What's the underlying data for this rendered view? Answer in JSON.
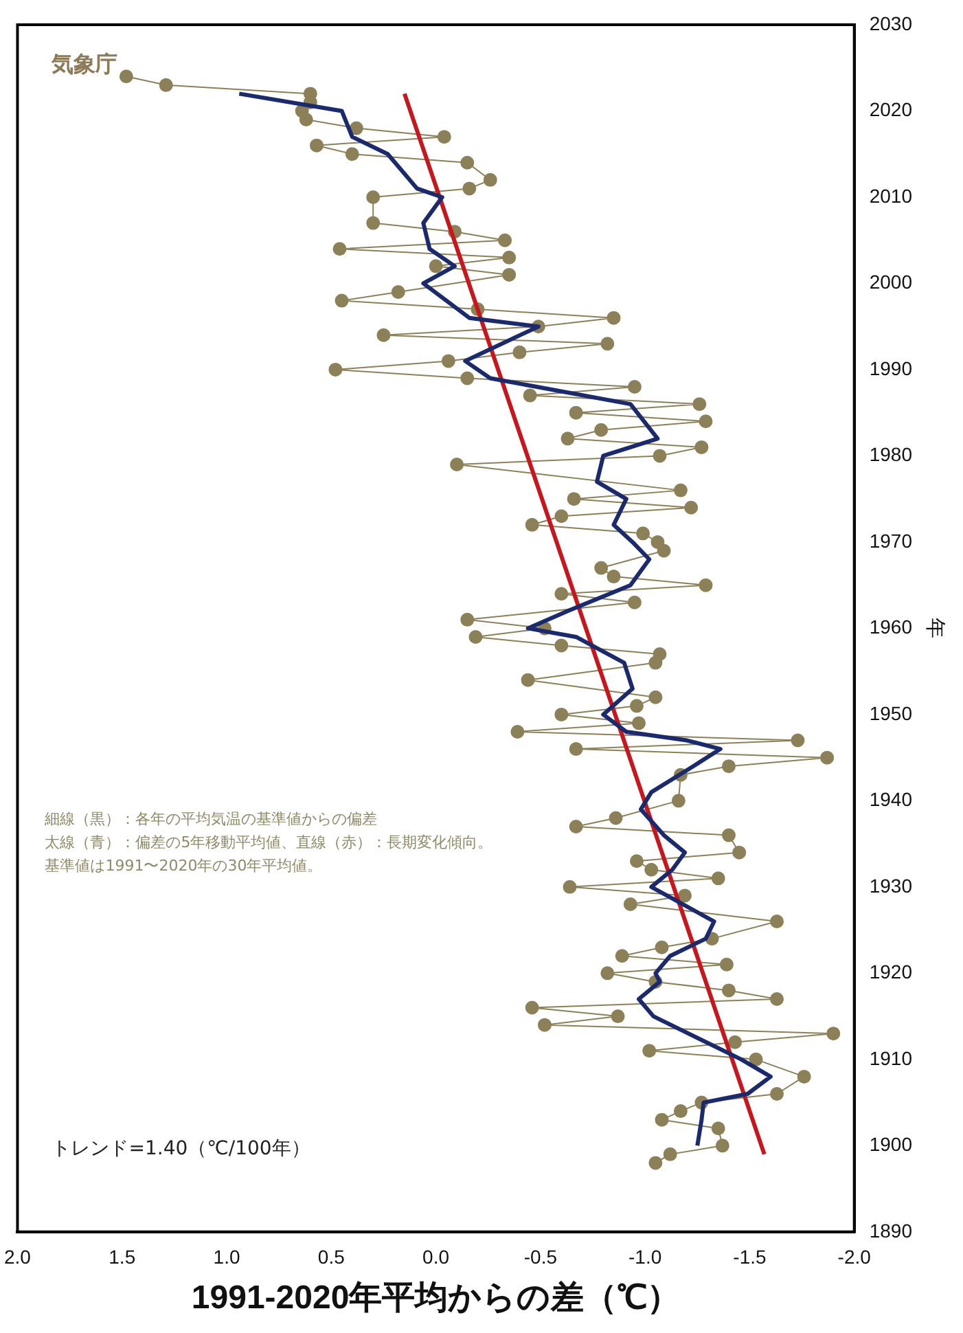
{
  "chart_data": {
    "type": "line",
    "xlabel": "1991-2020年平均からの差（℃）",
    "ylabel": "年",
    "annotations": [
      "トレンド=1.40（℃/100年）",
      "細線（黒）：各年の平均気温の基準値からの偏差",
      "太線（青）：偏差の5年移動平均値、直線（赤）：長期変化傾向。",
      "基準値は1991〜2020年の30年平均値。",
      "気象庁"
    ],
    "ylim": [
      1890,
      2030
    ],
    "yticks": [
      1890,
      1900,
      1910,
      1920,
      1930,
      1940,
      1950,
      1960,
      1970,
      1980,
      1990,
      2000,
      2010,
      2020,
      2030
    ],
    "xlim": [
      2,
      -2
    ],
    "xticks": [
      {
        "value": 2,
        "label": "2.0"
      },
      {
        "value": 1.5,
        "label": "1.5"
      },
      {
        "value": 1,
        "label": "1.0"
      },
      {
        "value": 0.5,
        "label": "0.5"
      },
      {
        "value": 0,
        "label": "0.0"
      },
      {
        "value": -0.5,
        "label": "-0.5"
      },
      {
        "value": -1,
        "label": "-1.0"
      },
      {
        "value": -1.5,
        "label": "-1.5"
      },
      {
        "value": -2,
        "label": "-2.0"
      }
    ],
    "grid": false,
    "legend": false,
    "series": [
      {
        "color": "#8c8058",
        "marker": "circle",
        "values": [
          1898,
          1899,
          1900,
          1902,
          1903,
          1904,
          1905,
          1906,
          1908,
          1910,
          1911,
          1912,
          1913,
          1914,
          1915,
          1916,
          1917,
          1918,
          1919,
          1920,
          1921,
          1922,
          1923,
          1924,
          1926,
          1928,
          1929,
          1930,
          1931,
          1932,
          1933,
          1934,
          1936,
          1937,
          1938,
          1940,
          1943,
          1944,
          1945,
          1946,
          1947,
          1948,
          1949,
          1950,
          1951,
          1952,
          1954,
          1956,
          1957,
          1958,
          1959,
          1960,
          1961,
          1963,
          1964,
          1965,
          1966,
          1967,
          1969,
          1970,
          1971,
          1972,
          1973,
          1974,
          1975,
          1976,
          1979,
          1980,
          1981,
          1982,
          1983,
          1984,
          1985,
          1986,
          1987,
          1988,
          1989,
          1990,
          1991,
          1992,
          1993,
          1994,
          1995,
          1996,
          1997,
          1998,
          1999,
          2001,
          2002,
          2003,
          2004,
          2005,
          2006,
          2007,
          2010,
          2011,
          2012,
          2014,
          2015,
          2016,
          2017,
          2018,
          2019,
          2020,
          2021,
          2022,
          2023,
          2024
        ],
        "x": [
          -1.05,
          -1.12,
          -1.37,
          -1.35,
          -1.08,
          -1.17,
          -1.27,
          -1.63,
          -1.76,
          -1.53,
          -1.02,
          -1.43,
          -1.9,
          -0.52,
          -0.87,
          -0.46,
          -1.63,
          -1.4,
          -1.05,
          -0.82,
          -1.39,
          -0.89,
          -1.08,
          -1.32,
          -1.63,
          -0.93,
          -1.19,
          -0.64,
          -1.35,
          -1.03,
          -0.96,
          -1.45,
          -1.4,
          -0.67,
          -0.86,
          -1.16,
          -1.17,
          -1.4,
          -1.87,
          -0.67,
          -1.73,
          -0.39,
          -0.97,
          -0.6,
          -0.96,
          -1.05,
          -0.44,
          -1.05,
          -1.07,
          -0.6,
          -0.19,
          -0.52,
          -0.15,
          -0.95,
          -0.6,
          -1.29,
          -0.85,
          -0.79,
          -1.09,
          -1.06,
          -0.99,
          -0.46,
          -0.6,
          -1.22,
          -0.66,
          -1.17,
          -0.1,
          -1.07,
          -1.27,
          -0.63,
          -0.79,
          -1.29,
          -0.67,
          -1.26,
          -0.45,
          -0.95,
          -0.15,
          0.48,
          -0.06,
          -0.4,
          -0.82,
          0.25,
          -0.49,
          -0.85,
          -0.2,
          0.45,
          0.18,
          -0.35,
          0,
          -0.35,
          0.46,
          -0.33,
          -0.09,
          0.3,
          0.3,
          -0.16,
          -0.26,
          -0.15,
          0.4,
          0.57,
          -0.04,
          0.38,
          0.62,
          0.64,
          0.6,
          0.6,
          1.29,
          1.48
        ]
      },
      {
        "color": "#1a2a6c",
        "marker": "none",
        "values": [
          1900,
          1903,
          1905,
          1906,
          1908,
          1910,
          1915,
          1917,
          1919,
          1920,
          1922,
          1924,
          1926,
          1930,
          1932,
          1934,
          1936,
          1939,
          1941,
          1944,
          1946,
          1947,
          1948,
          1950,
          1953,
          1956,
          1959,
          1960,
          1962,
          1965,
          1968,
          1970,
          1972,
          1975,
          1977,
          1980,
          1982,
          1986,
          1989,
          1991,
          1995,
          1996,
          2000,
          2002,
          2004,
          2007,
          2010,
          2011,
          2015,
          2017,
          2020,
          2022
        ],
        "x": [
          -1.25,
          -1.27,
          -1.28,
          -1.49,
          -1.6,
          -1.46,
          -1.04,
          -0.97,
          -1.07,
          -1.05,
          -1.12,
          -1.29,
          -1.33,
          -1.03,
          -1.13,
          -1.19,
          -1.09,
          -0.98,
          -1.03,
          -1.23,
          -1.36,
          -1.2,
          -0.91,
          -0.8,
          -0.94,
          -0.9,
          -0.67,
          -0.44,
          -0.63,
          -0.93,
          -1.02,
          -0.94,
          -0.85,
          -0.91,
          -0.77,
          -0.8,
          -1.06,
          -0.93,
          -0.26,
          -0.14,
          -0.49,
          -0.16,
          0.06,
          -0.09,
          0.03,
          0.06,
          -0.03,
          0.09,
          0.23,
          0.4,
          0.45,
          0.94
        ]
      },
      {
        "color": "#c8161d",
        "marker": "none",
        "values": [
          1899,
          2022
        ],
        "x": [
          -1.57,
          0.15
        ]
      }
    ]
  }
}
